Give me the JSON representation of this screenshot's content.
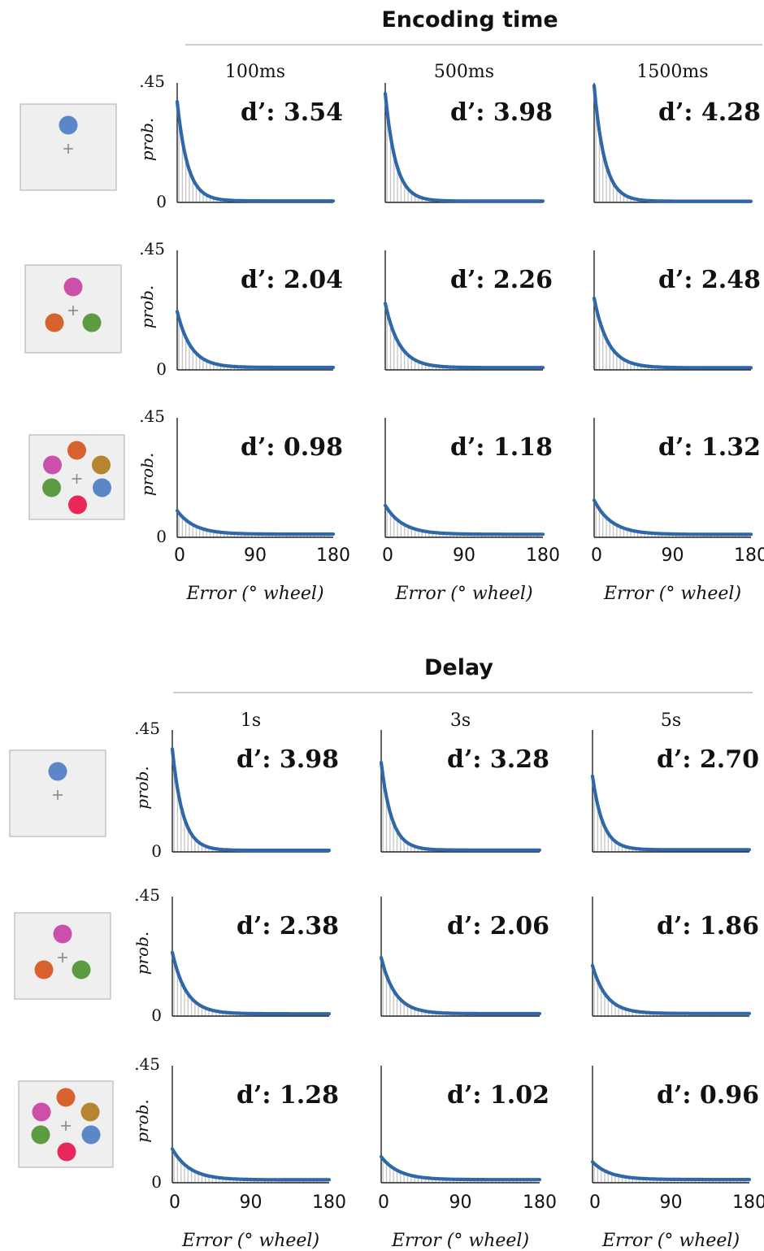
{
  "colors": {
    "curve": "#2f68a8",
    "hist": "#c4c4c4",
    "axis": "#222222",
    "rule": "#bbbbbb",
    "icon_bg": "#efefef",
    "icon_border": "#b9b9b9",
    "fixation": "#8a8a8a",
    "dot_blue": "#5b86c8",
    "dot_magenta": "#cc4fa9",
    "dot_orange": "#d8622d",
    "dot_green": "#5d9b43",
    "dot_olive": "#b5862f",
    "dot_pink": "#e8285a"
  },
  "shared": {
    "ylabel": "prob.",
    "ytick_top": ".45",
    "ytick_bottom": "0",
    "xticks": [
      "0",
      "90",
      "180"
    ],
    "xlabel": "Error (° wheel)"
  },
  "chart_data": [
    {
      "type": "line",
      "section": "Encoding time",
      "conditions": [
        "100ms",
        "500ms",
        "1500ms"
      ],
      "x_range": [
        0,
        180
      ],
      "y_range": [
        0,
        0.45
      ],
      "rows": [
        {
          "set_size": 1,
          "icon": [
            "dot_blue"
          ],
          "panels": [
            {
              "dprime": "d’: 3.54",
              "peak": 0.38
            },
            {
              "dprime": "d’: 3.98",
              "peak": 0.41
            },
            {
              "dprime": "d’: 4.28",
              "peak": 0.44
            }
          ]
        },
        {
          "set_size": 3,
          "icon": [
            "dot_magenta",
            "dot_orange",
            "dot_green"
          ],
          "panels": [
            {
              "dprime": "d’: 2.04",
              "peak": 0.22
            },
            {
              "dprime": "d’: 2.26",
              "peak": 0.25
            },
            {
              "dprime": "d’: 2.48",
              "peak": 0.27
            }
          ]
        },
        {
          "set_size": 6,
          "icon": [
            "dot_orange",
            "dot_magenta",
            "dot_olive",
            "dot_green",
            "dot_blue",
            "dot_pink"
          ],
          "panels": [
            {
              "dprime": "d’: 0.98",
              "peak": 0.1
            },
            {
              "dprime": "d’: 1.18",
              "peak": 0.12
            },
            {
              "dprime": "d’: 1.32",
              "peak": 0.14
            }
          ]
        }
      ]
    },
    {
      "type": "line",
      "section": "Delay",
      "conditions": [
        "1s",
        "3s",
        "5s"
      ],
      "x_range": [
        0,
        180
      ],
      "y_range": [
        0,
        0.45
      ],
      "rows": [
        {
          "set_size": 1,
          "icon": [
            "dot_blue"
          ],
          "panels": [
            {
              "dprime": "d’: 3.98",
              "peak": 0.38
            },
            {
              "dprime": "d’: 3.28",
              "peak": 0.33
            },
            {
              "dprime": "d’: 2.70",
              "peak": 0.28
            }
          ]
        },
        {
          "set_size": 3,
          "icon": [
            "dot_magenta",
            "dot_orange",
            "dot_green"
          ],
          "panels": [
            {
              "dprime": "d’: 2.38",
              "peak": 0.24
            },
            {
              "dprime": "d’: 2.06",
              "peak": 0.22
            },
            {
              "dprime": "d’: 1.86",
              "peak": 0.19
            }
          ]
        },
        {
          "set_size": 6,
          "icon": [
            "dot_orange",
            "dot_magenta",
            "dot_olive",
            "dot_green",
            "dot_blue",
            "dot_pink"
          ],
          "panels": [
            {
              "dprime": "d’: 1.28",
              "peak": 0.13
            },
            {
              "dprime": "d’: 1.02",
              "peak": 0.1
            },
            {
              "dprime": "d’: 0.96",
              "peak": 0.08
            }
          ]
        }
      ]
    }
  ]
}
